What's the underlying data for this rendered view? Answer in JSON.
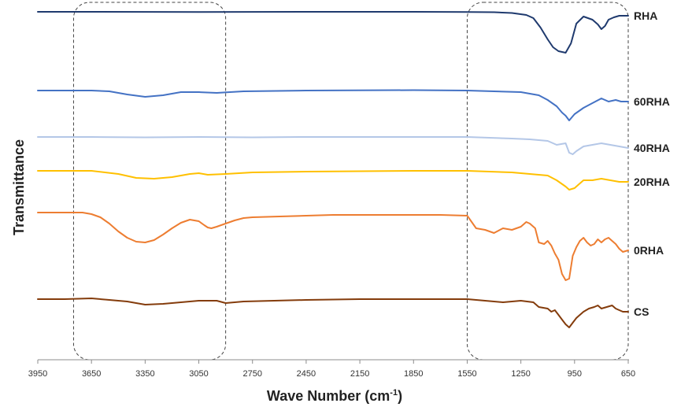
{
  "chart_data": {
    "type": "line",
    "title": "",
    "xlabel": "Wave Number (cm",
    "xlabel_sup": "-1",
    "xlabel_close": ")",
    "ylabel": "Transmittance",
    "xlim": [
      3950,
      650
    ],
    "x_reversed": true,
    "x_ticks": [
      3950,
      3650,
      3350,
      3050,
      2750,
      2450,
      2150,
      1850,
      1550,
      1250,
      950,
      650
    ],
    "y_ticks": [],
    "grid": false,
    "legend": "labels at right end of each trace",
    "highlight_regions": [
      {
        "from": 3750,
        "to": 2900
      },
      {
        "from": 1550,
        "to": 650
      }
    ],
    "series": [
      {
        "name": "RHA",
        "color": "#1f3a6e",
        "offset": 0,
        "x": [
          3950,
          3650,
          3050,
          2450,
          1850,
          1550,
          1400,
          1300,
          1220,
          1180,
          1140,
          1100,
          1070,
          1040,
          1000,
          970,
          940,
          900,
          850,
          820,
          800,
          780,
          760,
          730,
          700,
          650
        ],
        "y": [
          0,
          0,
          0.2,
          0,
          0,
          0.2,
          0.5,
          1.5,
          4,
          8,
          20,
          35,
          45,
          50,
          52,
          40,
          15,
          6,
          10,
          16,
          22,
          18,
          10,
          7,
          5,
          5
        ]
      },
      {
        "name": "60RHA",
        "color": "#4472c4",
        "offset": 100,
        "x": [
          3950,
          3650,
          3550,
          3450,
          3350,
          3250,
          3150,
          3050,
          2950,
          2800,
          2450,
          1850,
          1550,
          1400,
          1250,
          1150,
          1100,
          1050,
          1020,
          1000,
          980,
          950,
          900,
          850,
          800,
          760,
          720,
          690,
          650
        ],
        "y": [
          0,
          0,
          1,
          5,
          8,
          6,
          2,
          2,
          3,
          1,
          0,
          -0.5,
          0,
          1,
          2,
          6,
          12,
          20,
          28,
          32,
          38,
          30,
          22,
          16,
          10,
          14,
          12,
          14,
          14
        ]
      },
      {
        "name": "40RHA",
        "color": "#b4c7e7",
        "offset": 159,
        "x": [
          3950,
          3650,
          3350,
          3050,
          2750,
          2450,
          1850,
          1550,
          1300,
          1200,
          1100,
          1050,
          1000,
          980,
          960,
          940,
          900,
          850,
          800,
          750,
          700,
          650
        ],
        "y": [
          0,
          0,
          0.5,
          0,
          0.5,
          0,
          0,
          0,
          2,
          3,
          5,
          10,
          8,
          20,
          22,
          18,
          12,
          10,
          8,
          10,
          12,
          14
        ]
      },
      {
        "name": "20RHA",
        "color": "#ffc000",
        "offset": 202,
        "x": [
          3950,
          3650,
          3500,
          3400,
          3300,
          3200,
          3100,
          3050,
          3000,
          2900,
          2750,
          2450,
          1850,
          1550,
          1300,
          1200,
          1100,
          1050,
          1000,
          980,
          950,
          920,
          900,
          850,
          800,
          750,
          700,
          650
        ],
        "y": [
          0,
          0,
          4,
          9,
          10,
          8,
          4,
          3,
          5,
          4,
          2,
          1,
          0,
          0,
          2,
          4,
          6,
          12,
          20,
          24,
          22,
          16,
          12,
          12,
          10,
          12,
          14,
          14
        ]
      },
      {
        "name": "0RHA",
        "color": "#ed7d31",
        "offset": 255,
        "x": [
          3950,
          3800,
          3700,
          3650,
          3600,
          3550,
          3500,
          3450,
          3400,
          3350,
          3300,
          3250,
          3200,
          3150,
          3100,
          3050,
          3020,
          3000,
          2980,
          2950,
          2900,
          2850,
          2800,
          2750,
          2600,
          2450,
          2300,
          2150,
          2000,
          1850,
          1700,
          1550,
          1500,
          1450,
          1400,
          1350,
          1300,
          1250,
          1220,
          1200,
          1170,
          1150,
          1120,
          1100,
          1080,
          1060,
          1040,
          1020,
          1000,
          980,
          960,
          940,
          920,
          900,
          880,
          860,
          840,
          820,
          800,
          780,
          760,
          740,
          720,
          700,
          680,
          650
        ],
        "y": [
          0,
          0,
          0,
          2,
          6,
          14,
          24,
          32,
          37,
          38,
          35,
          28,
          20,
          13,
          9,
          11,
          16,
          19,
          20,
          18,
          14,
          10,
          7,
          6,
          5,
          4,
          3,
          3,
          3,
          3,
          3,
          4,
          20,
          22,
          26,
          20,
          22,
          18,
          12,
          14,
          20,
          38,
          40,
          36,
          42,
          52,
          60,
          78,
          86,
          84,
          55,
          44,
          36,
          32,
          38,
          42,
          40,
          34,
          38,
          34,
          32,
          36,
          40,
          46,
          50,
          48
        ]
      },
      {
        "name": "CS",
        "color": "#843c0c",
        "offset": 365,
        "x": [
          3950,
          3800,
          3650,
          3550,
          3450,
          3350,
          3250,
          3150,
          3050,
          2950,
          2900,
          2800,
          2450,
          2150,
          1850,
          1550,
          1450,
          1350,
          1250,
          1180,
          1150,
          1100,
          1080,
          1060,
          1040,
          1020,
          1000,
          980,
          960,
          940,
          920,
          900,
          870,
          840,
          820,
          800,
          770,
          740,
          720,
          700,
          680,
          650
        ],
        "y": [
          0,
          0,
          -1,
          1,
          3,
          7,
          6,
          4,
          2,
          2,
          5,
          3,
          1,
          0,
          0,
          0,
          2,
          4,
          2,
          4,
          10,
          12,
          16,
          14,
          20,
          26,
          32,
          36,
          30,
          24,
          20,
          16,
          12,
          10,
          8,
          12,
          10,
          8,
          12,
          14,
          16,
          16
        ]
      }
    ]
  }
}
